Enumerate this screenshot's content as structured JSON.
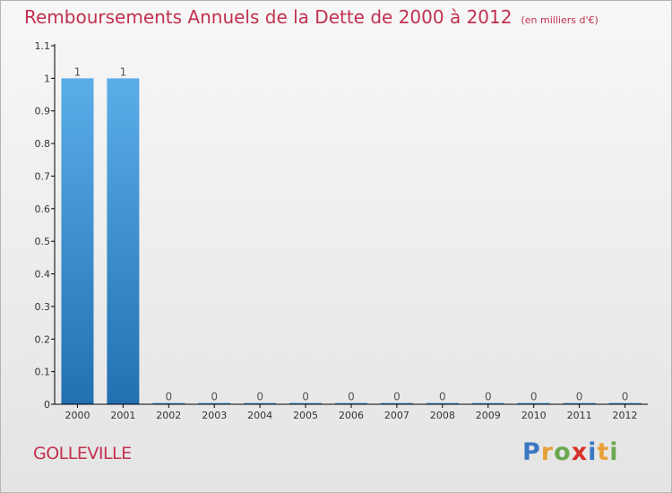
{
  "title": "Remboursements Annuels de la Dette de 2000 à 2012",
  "unit": "(en milliers d'€)",
  "commune": "GOLLEVILLE",
  "brand": {
    "letters": [
      "P",
      "r",
      "o",
      "x",
      "i",
      "t",
      "i"
    ],
    "colors": [
      "#3b78c4",
      "#e8a13a",
      "#6aa84f",
      "#d8332a",
      "#3b78c4",
      "#e8a13a",
      "#6aa84f"
    ]
  },
  "colors": {
    "title": "#c2304f",
    "bar_light": "#5aaee8",
    "bar_dark": "#2270b0",
    "axis": "#000000"
  },
  "chart_data": {
    "type": "bar",
    "title": "Remboursements Annuels de la Dette de 2000 à 2012",
    "xlabel": "",
    "ylabel": "",
    "categories": [
      "2000",
      "2001",
      "2002",
      "2003",
      "2004",
      "2005",
      "2006",
      "2007",
      "2008",
      "2009",
      "2010",
      "2011",
      "2012"
    ],
    "values": [
      1,
      1,
      0,
      0,
      0,
      0,
      0,
      0,
      0,
      0,
      0,
      0,
      0
    ],
    "value_labels": [
      "1",
      "1",
      "0",
      "0",
      "0",
      "0",
      "0",
      "0",
      "0",
      "0",
      "0",
      "0",
      "0"
    ],
    "ylim": [
      0,
      1.1
    ],
    "yticks": [
      0,
      0.1,
      0.2,
      0.3,
      0.4,
      0.5,
      0.6,
      0.7,
      0.8,
      0.9,
      1,
      1.1
    ],
    "ytick_labels": [
      "0",
      "0.1",
      "0.2",
      "0.3",
      "0.4",
      "0.5",
      "0.6",
      "0.7",
      "0.8",
      "0.9",
      "1",
      "1.1"
    ],
    "grid": false
  }
}
